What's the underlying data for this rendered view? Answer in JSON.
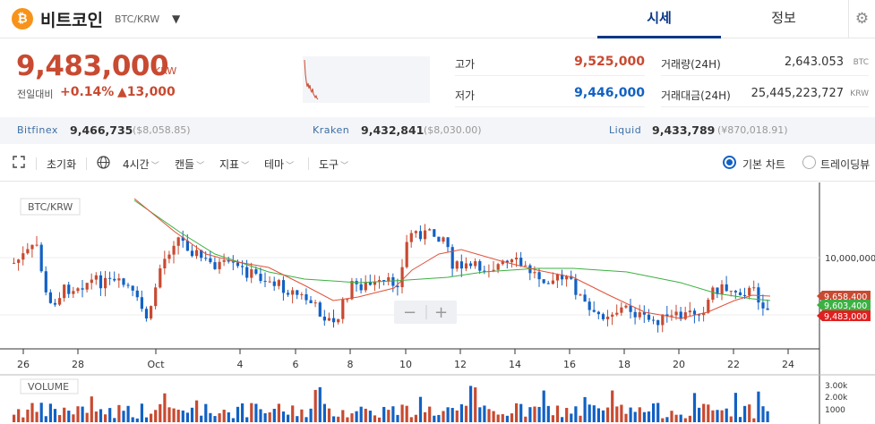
{
  "header": {
    "coin_logo": "₿",
    "coin_name": "비트코인",
    "pair": "BTC/KRW",
    "dropdown_icon": "caret-down-icon",
    "tabs": [
      {
        "label": "시세",
        "active": true
      },
      {
        "label": "정보",
        "active": false
      }
    ],
    "settings_icon": "gear-icon"
  },
  "price": {
    "current": "9,483,000",
    "unit": "KRW",
    "change_label": "전일대비",
    "change_rate": "+0.14%",
    "change_amount": "▲13,000"
  },
  "stats": {
    "high_label": "고가",
    "high_value": "9,525,000",
    "low_label": "저가",
    "low_value": "9,446,000",
    "volume_label": "거래량(24H)",
    "volume_value": "2,643.053",
    "volume_unit": "BTC",
    "amount_label": "거래대금(24H)",
    "amount_value": "25,445,223,727",
    "amount_unit": "KRW"
  },
  "exchanges": [
    {
      "name": "Bitfinex",
      "value": "9,466,735",
      "usd": "($8,058.85)"
    },
    {
      "name": "Kraken",
      "value": "9,432,841",
      "usd": "($8,030.00)"
    },
    {
      "name": "Liquid",
      "value": "9,433,789",
      "usd": "(¥870,018.91)"
    }
  ],
  "toolbar": {
    "expand_icon": "expand-icon",
    "reset": "초기화",
    "globe_icon": "globe-icon",
    "interval": "4시간",
    "candle": "캔들",
    "indicator": "지표",
    "theme": "테마",
    "tools": "도구",
    "basic_chart": "기본 차트",
    "tradingview": "트레이딩뷰",
    "selected_mode": "기본 차트"
  },
  "chart": {
    "label": "BTC/KRW",
    "volume_label": "VOLUME",
    "price_axis_tick": "10,000,000",
    "volume_ticks": [
      "3.00k",
      "2.00k",
      "1000"
    ],
    "x_ticks": [
      "26",
      "28",
      "Oct",
      "4",
      "6",
      "8",
      "10",
      "12",
      "14",
      "16",
      "18",
      "20",
      "22",
      "24"
    ],
    "markers": [
      {
        "label": "9,658,400",
        "color": "#c84a31"
      },
      {
        "label": "9,603,400",
        "color": "#3cb043"
      },
      {
        "label": "9,483,000",
        "color": "#e02020"
      }
    ],
    "zoom_out": "−",
    "zoom_in": "+",
    "colors": {
      "up": "#c84a31",
      "down": "#1261c4",
      "ma_short": "#e0523a",
      "ma_long": "#3cb043"
    }
  }
}
